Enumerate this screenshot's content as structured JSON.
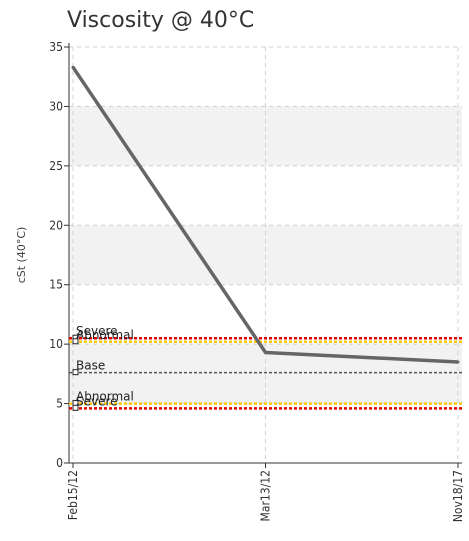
{
  "chart_data": {
    "type": "line",
    "title": "Viscosity @ 40°C",
    "ylabel": "cSt (40°C)",
    "xlabel": "",
    "categories": [
      "Feb15/12",
      "Mar13/12",
      "Nov18/17"
    ],
    "ylim": [
      0,
      35
    ],
    "yticks": [
      0,
      5,
      10,
      15,
      20,
      25,
      30,
      35
    ],
    "grid": true,
    "series": [
      {
        "values": [
          33.3,
          9.3,
          8.5
        ],
        "color": "#666666"
      }
    ],
    "thresholds": [
      {
        "label": "Severe",
        "value": 10.5,
        "color": "#e60000"
      },
      {
        "label": "Abnormal",
        "value": 10.2,
        "color": "#ffcc00"
      },
      {
        "label": "Base",
        "value": 7.6,
        "color": "#555555"
      },
      {
        "label": "Abnormal",
        "value": 5.0,
        "color": "#ffcc00"
      },
      {
        "label": "Severe",
        "value": 4.6,
        "color": "#e60000"
      }
    ]
  }
}
